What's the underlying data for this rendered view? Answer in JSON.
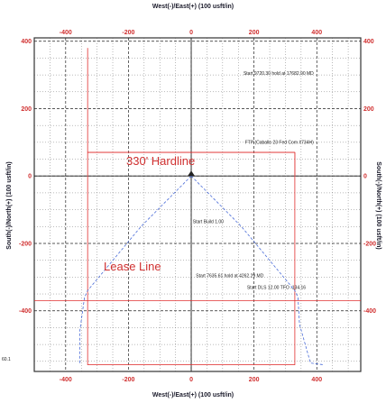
{
  "chart_data": {
    "type": "line",
    "x_axis_title": "West(-)/East(+) (100 usft/in)",
    "y_axis_title": "South(-)/North(+) (100 usft/in)",
    "xlim": [
      -500,
      540
    ],
    "ylim": [
      -580,
      410
    ],
    "x_ticks": [
      -400,
      -200,
      0,
      200,
      400
    ],
    "y_ticks": [
      400,
      200,
      0,
      -200,
      -400
    ],
    "x_tick_labels": [
      "-400",
      "-200",
      "0",
      "200",
      "400"
    ],
    "y_tick_labels": [
      "400",
      "200",
      "0",
      "-200",
      "-400"
    ],
    "grid": true,
    "hardline_label": "330' Hardline",
    "lease_line_label": "Lease Line",
    "corner_label": "60.1",
    "annotations": [
      {
        "id": "start_hold_top",
        "text": "Start 9720.30 hold at 17682.90 MD",
        "x": 390,
        "y": 300
      },
      {
        "id": "ftp",
        "text": "FTP (Caballo 23 Fed Com #734H)",
        "x": 390,
        "y": 95
      },
      {
        "id": "start_build",
        "text": "Start Build 1.00",
        "x": 5,
        "y": -140
      },
      {
        "id": "start_hold_mid",
        "text": "Start 7635.61 hold at 4262.29 MD",
        "x": 15,
        "y": -300
      },
      {
        "id": "start_dls",
        "text": "Start DLS 12.00 TFO -134.16",
        "x": 365,
        "y": -335
      }
    ],
    "series": [
      {
        "id": "hardline_box",
        "style": "red",
        "x": [
          -330,
          330
        ],
        "y": [
          -560,
          70
        ]
      },
      {
        "id": "lease_line",
        "style": "red",
        "x": [
          -500,
          540
        ],
        "y": [
          -370,
          -370
        ]
      },
      {
        "id": "well_east",
        "style": "blue",
        "x": [
          0,
          160,
          330,
          340,
          345,
          380,
          420
        ],
        "y": [
          0,
          -150,
          -340,
          -360,
          -440,
          -555,
          -560
        ]
      },
      {
        "id": "well_west",
        "style": "blue",
        "x": [
          0,
          -160,
          -330,
          -340,
          -355,
          -355
        ],
        "y": [
          0,
          -150,
          -340,
          -360,
          -460,
          -555
        ]
      },
      {
        "id": "vertical_to_ftp",
        "style": "red",
        "x": [
          330,
          330
        ],
        "y": [
          0,
          70
        ]
      }
    ]
  }
}
